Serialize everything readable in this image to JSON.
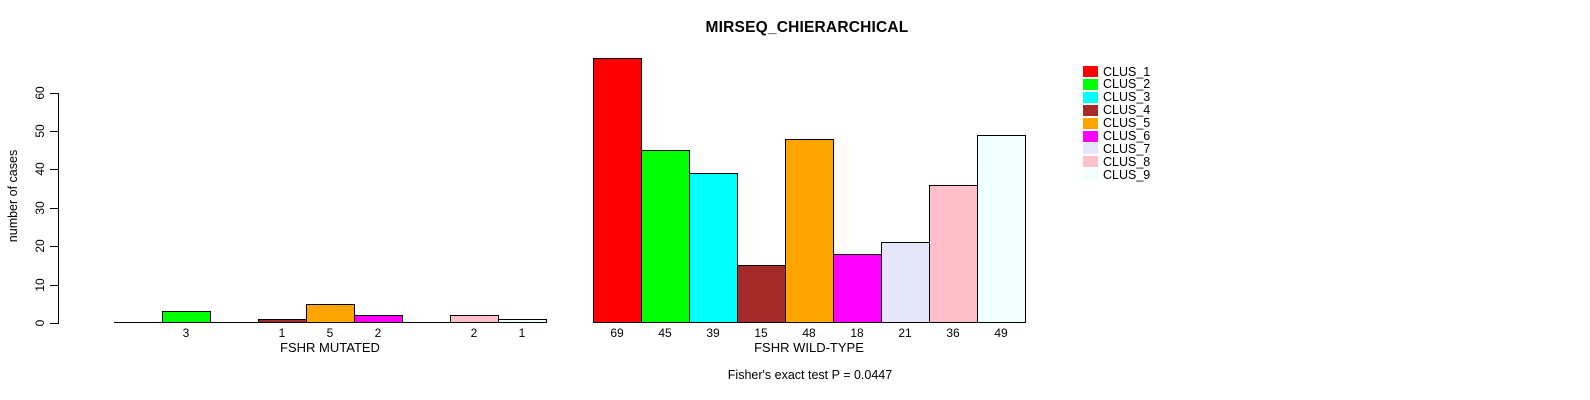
{
  "chart_data": {
    "type": "bar",
    "title": "MIRSEQ_CHIERARCHICAL",
    "ylabel": "number of cases",
    "ylim": [
      0,
      69
    ],
    "yticks": [
      0,
      10,
      20,
      30,
      40,
      50,
      60
    ],
    "grid": false,
    "legend_position": "top-right-inside",
    "legend": [
      {
        "label": "CLUS_1",
        "color": "#FF0000"
      },
      {
        "label": "CLUS_2",
        "color": "#00FF00"
      },
      {
        "label": "CLUS_3",
        "color": "#00FFFF"
      },
      {
        "label": "CLUS_4",
        "color": "#A52A2A"
      },
      {
        "label": "CLUS_5",
        "color": "#FFA500"
      },
      {
        "label": "CLUS_6",
        "color": "#FF00FF"
      },
      {
        "label": "CLUS_7",
        "color": "#E6E6FA"
      },
      {
        "label": "CLUS_8",
        "color": "#FFC0CB"
      },
      {
        "label": "CLUS_9",
        "color": "#F0FFFF"
      }
    ],
    "groups": [
      {
        "label": "FSHR MUTATED",
        "values": [
          0,
          3,
          0,
          1,
          5,
          2,
          0,
          2,
          1
        ]
      },
      {
        "label": "FSHR WILD-TYPE",
        "values": [
          69,
          45,
          39,
          15,
          48,
          18,
          21,
          36,
          49
        ]
      }
    ],
    "zero_bars_drawn_as_flat_lines": true,
    "annotation": "Fisher's exact test P = 0.0447"
  }
}
